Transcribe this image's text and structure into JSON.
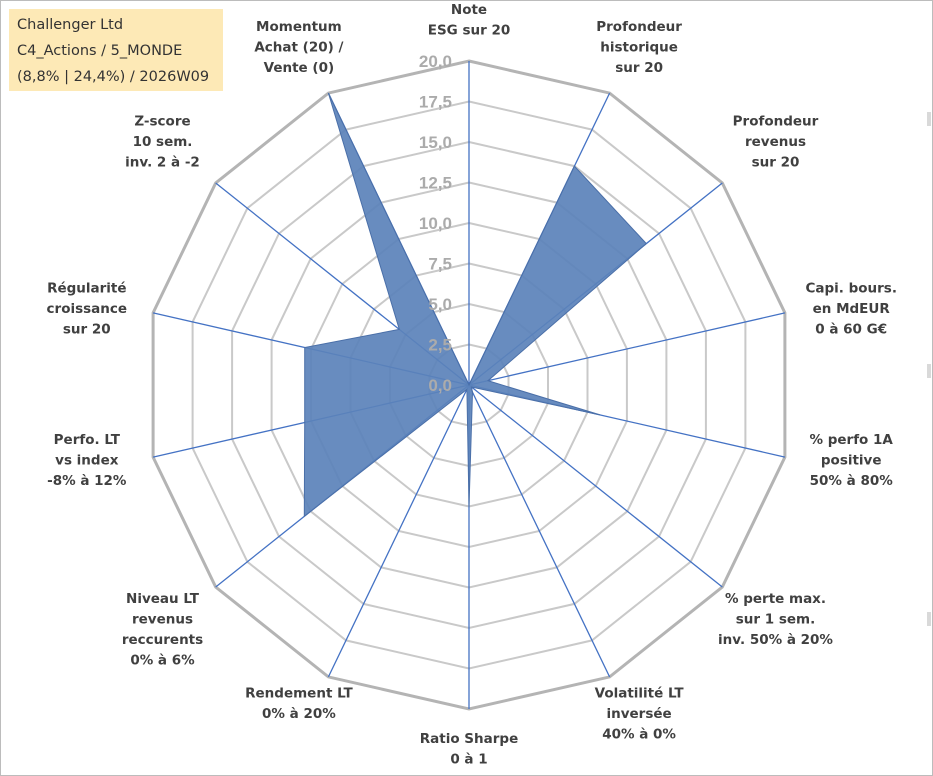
{
  "header": {
    "company": "Challenger Ltd",
    "portfolio": "C4_Actions / 5_MONDE",
    "stats": "(8,8% | 24,4%) / 2026W09"
  },
  "chart_data": {
    "type": "radar",
    "rmin": 0,
    "rmax": 20,
    "tick_step": 2.5,
    "tick_labels": [
      "0,0",
      "2,5",
      "5,0",
      "7,5",
      "10,0",
      "12,5",
      "15,0",
      "17,5",
      "20,0"
    ],
    "axes": [
      [
        "Note",
        "ESG sur 20"
      ],
      [
        "Profondeur",
        "historique",
        "sur 20"
      ],
      [
        "Profondeur",
        "revenus",
        "sur 20"
      ],
      [
        "Capi. bours.",
        "en MdEUR",
        "0 à 60 G€"
      ],
      [
        "% perfo 1A",
        "positive",
        "50% à 80%"
      ],
      [
        "% perte max.",
        "sur 1 sem.",
        "inv. 50% à 20%"
      ],
      [
        "Volatilité LT",
        "inversée",
        "40% à 0%"
      ],
      [
        "Ratio Sharpe",
        "0 à 1"
      ],
      [
        "Rendement LT",
        "0% à 20%"
      ],
      [
        "Niveau LT",
        "revenus",
        "reccurents",
        "0% à 6%"
      ],
      [
        "Perfo. LT",
        "vs index",
        "-8% à 12%"
      ],
      [
        "Régularité",
        "croissance",
        "sur 20"
      ],
      [
        "Z-score",
        "10 sem.",
        "inv. 2 à -2"
      ],
      [
        "Momentum",
        "Achat (20) /",
        "Vente (0)"
      ]
    ],
    "series": [
      {
        "values": [
          0,
          15,
          14,
          1.2,
          8.3,
          0.2,
          0.5,
          7.5,
          0.3,
          13,
          10.4,
          10.4,
          5.5,
          20
        ]
      }
    ],
    "fill_color": "#5b82ba",
    "axis_color": "#4472c4",
    "grid_color": "#c9c9c9",
    "grid_outer_color": "#b4b4b4"
  }
}
